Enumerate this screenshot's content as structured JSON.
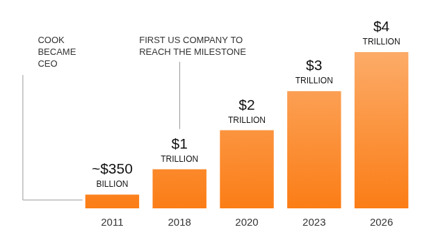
{
  "chart_data": {
    "type": "bar",
    "categories": [
      "2011",
      "2018",
      "2020",
      "2023",
      "2026"
    ],
    "values": [
      350,
      1000,
      2000,
      3000,
      4000
    ],
    "value_labels": [
      "~$350 BILLION",
      "$1 TRILLION",
      "$2 TRILLION",
      "$3 TRILLION",
      "$4 TRILLION"
    ],
    "annotations": [
      "COOK BECAME CEO",
      "FIRST US COMPANY TO REACH THE MILESTONE"
    ],
    "color": "#fb7d16",
    "ylim": [
      0,
      4000
    ],
    "grid": false,
    "data_labels": true,
    "tick_labels": "x"
  }
}
